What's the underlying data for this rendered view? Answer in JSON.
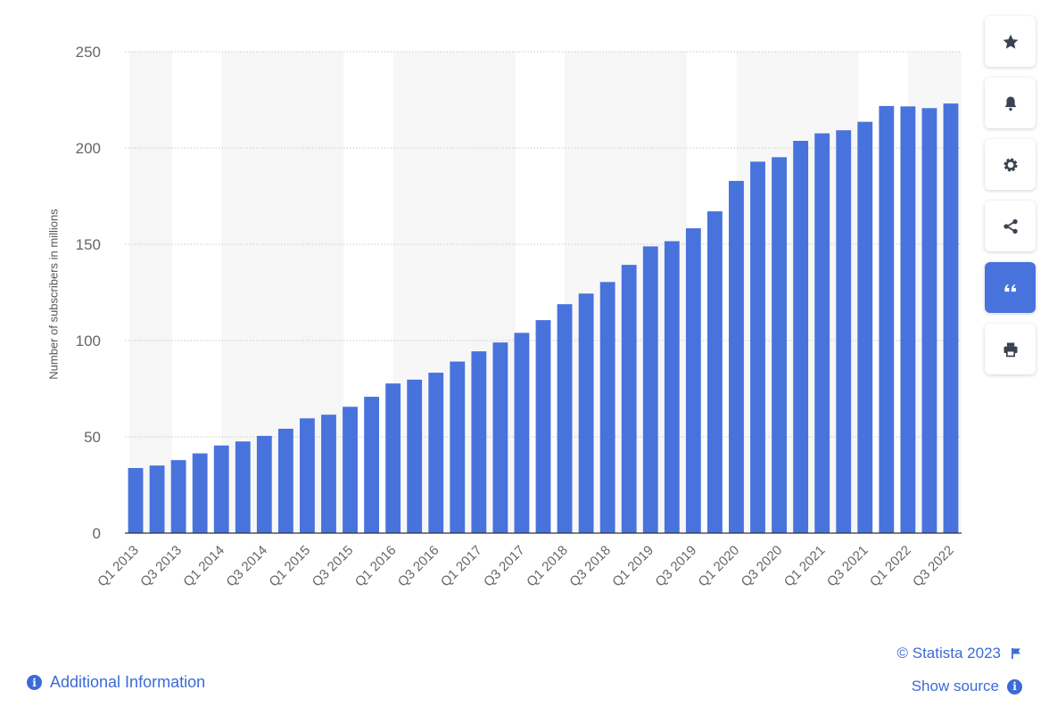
{
  "chart_data": {
    "type": "bar",
    "ylabel": "Number of subscribers in millions",
    "ylim": [
      0,
      250
    ],
    "yticks": [
      0,
      50,
      100,
      150,
      200,
      250
    ],
    "grid": true,
    "bar_color": "#4873dc",
    "categories": [
      "Q1 2013",
      "Q2 2013",
      "Q3 2013",
      "Q4 2013",
      "Q1 2014",
      "Q2 2014",
      "Q3 2014",
      "Q4 2014",
      "Q1 2015",
      "Q2 2015",
      "Q3 2015",
      "Q4 2015",
      "Q1 2016",
      "Q2 2016",
      "Q3 2016",
      "Q4 2016",
      "Q1 2017",
      "Q2 2017",
      "Q3 2017",
      "Q4 2017",
      "Q1 2018",
      "Q2 2018",
      "Q3 2018",
      "Q4 2018",
      "Q1 2019",
      "Q2 2019",
      "Q3 2019",
      "Q4 2019",
      "Q1 2020",
      "Q2 2020",
      "Q3 2020",
      "Q4 2020",
      "Q1 2021",
      "Q2 2021",
      "Q3 2021",
      "Q4 2021",
      "Q1 2022",
      "Q2 2022",
      "Q3 2022"
    ],
    "visible_tick_labels": [
      "Q1 2013",
      "Q3 2013",
      "Q1 2014",
      "Q3 2014",
      "Q1 2015",
      "Q3 2015",
      "Q1 2016",
      "Q3 2016",
      "Q1 2017",
      "Q3 2017",
      "Q1 2018",
      "Q3 2018",
      "Q1 2019",
      "Q3 2019",
      "Q1 2020",
      "Q3 2020",
      "Q1 2021",
      "Q3 2021",
      "Q1 2022",
      "Q3 2022"
    ],
    "values": [
      33.8,
      35.1,
      37.9,
      41.4,
      45.5,
      47.6,
      50.5,
      54.2,
      59.6,
      61.5,
      65.6,
      70.8,
      77.7,
      79.7,
      83.3,
      89.1,
      94.4,
      99.0,
      104.0,
      110.6,
      118.9,
      124.4,
      130.4,
      139.3,
      148.9,
      151.6,
      158.3,
      167.1,
      182.9,
      192.9,
      195.2,
      203.7,
      207.6,
      209.2,
      213.6,
      221.8,
      221.6,
      220.7,
      223.1
    ]
  },
  "footer": {
    "copyright": "© Statista 2023",
    "show_source": "Show source",
    "additional_info": "Additional Information"
  },
  "toolbar": {
    "icons": [
      "star-icon",
      "bell-icon",
      "gear-icon",
      "share-icon",
      "quote-icon",
      "print-icon"
    ],
    "active": "quote-icon",
    "accent": "#4873dc"
  }
}
